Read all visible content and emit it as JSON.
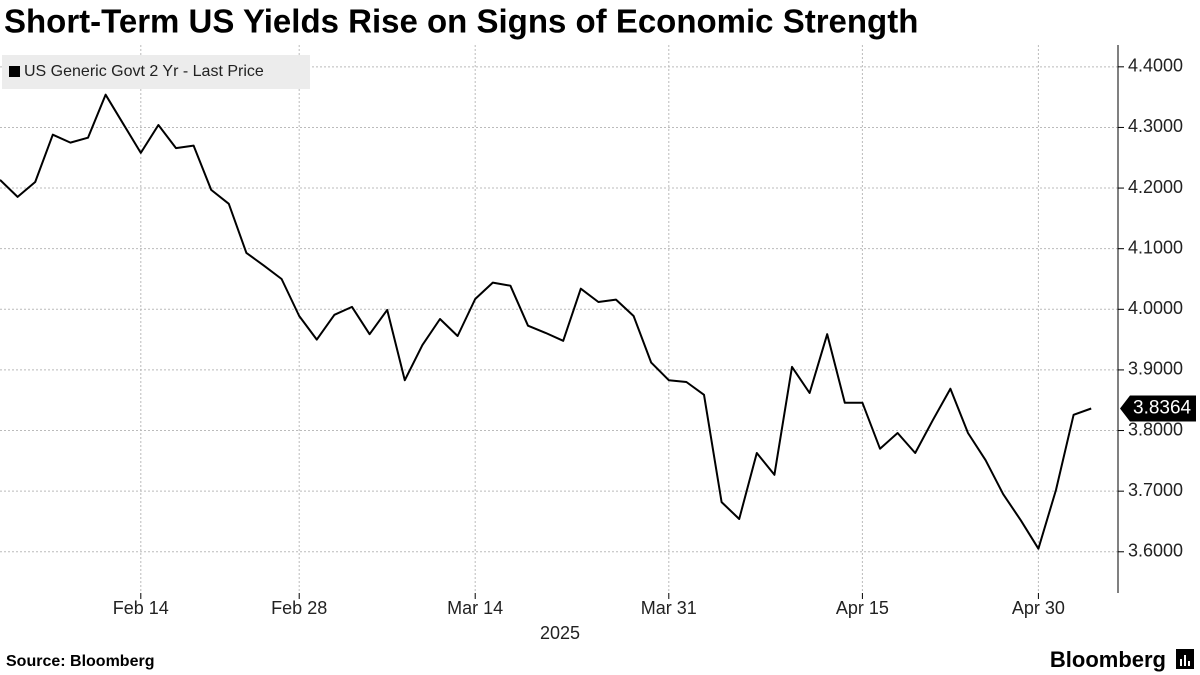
{
  "chart_data": {
    "type": "line",
    "title": "Short-Term US Yields Rise on Signs of Economic Strength",
    "x_label": "2025",
    "source": "Source: Bloomberg",
    "brand": "Bloomberg",
    "categories": [
      null,
      null,
      null,
      null,
      null,
      null,
      null,
      null,
      "Feb 14",
      null,
      null,
      null,
      null,
      null,
      null,
      null,
      null,
      "Feb 28",
      null,
      null,
      null,
      null,
      null,
      null,
      null,
      null,
      null,
      "Mar 14",
      null,
      null,
      null,
      null,
      null,
      null,
      null,
      null,
      null,
      null,
      "Mar 31",
      null,
      null,
      null,
      null,
      null,
      null,
      null,
      null,
      null,
      null,
      "Apr 15",
      null,
      null,
      null,
      null,
      null,
      null,
      null,
      null,
      null,
      "Apr 30",
      null,
      null,
      null
    ],
    "series": [
      {
        "name": "US Generic Govt 2 Yr - Last Price",
        "color": "#000000",
        "values": [
          4.2135,
          4.1855,
          4.21,
          4.288,
          4.275,
          4.283,
          4.354,
          4.306,
          4.258,
          4.304,
          4.266,
          4.27,
          4.197,
          4.174,
          4.093,
          4.072,
          4.05,
          3.989,
          3.95,
          3.991,
          4.004,
          3.959,
          3.999,
          3.883,
          3.941,
          3.984,
          3.956,
          4.017,
          4.044,
          4.039,
          3.973,
          3.961,
          3.948,
          4.034,
          4.012,
          4.016,
          3.989,
          3.912,
          3.883,
          3.88,
          3.859,
          3.682,
          3.654,
          3.763,
          3.727,
          3.905,
          3.862,
          3.959,
          3.846,
          3.846,
          3.77,
          3.796,
          3.763,
          3.817,
          3.869,
          3.796,
          3.751,
          3.695,
          3.652,
          3.605,
          3.702,
          3.826,
          3.8364
        ]
      }
    ],
    "ylim": [
      3.532,
      4.436
    ],
    "yticks": [
      {
        "value": 3.6,
        "label": "3.6000"
      },
      {
        "value": 3.7,
        "label": "3.7000"
      },
      {
        "value": 3.8,
        "label": "3.8000"
      },
      {
        "value": 3.9,
        "label": "3.9000"
      },
      {
        "value": 4.0,
        "label": "4.0000"
      },
      {
        "value": 4.1,
        "label": "4.1000"
      },
      {
        "value": 4.2,
        "label": "4.2000"
      },
      {
        "value": 4.3,
        "label": "4.3000"
      },
      {
        "value": 4.4,
        "label": "4.4000"
      }
    ],
    "grid": true
  }
}
